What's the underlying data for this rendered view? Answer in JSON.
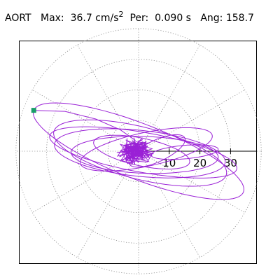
{
  "header": {
    "vessel": "AORT",
    "max_label": "Max:",
    "max_value": "36.7 cm/s",
    "max_exp": "2",
    "per_label": "Per:",
    "per_value": "0.090 s",
    "ang_label": "Ang:",
    "ang_value": "158.7"
  },
  "colors": {
    "trace": "#9a20d6",
    "marker": "#1a9d6a",
    "grid": "#8a8a8a",
    "axis": "#000000",
    "frame": "#000000"
  },
  "chart_data": {
    "type": "polar-loop",
    "unit": "cm/s^2",
    "ring_radii": [
      10,
      20,
      30,
      40
    ],
    "spoke_step_deg": 30,
    "axis_tick_labels": [
      "10",
      "20",
      "30"
    ],
    "max_magnitude": 36.7,
    "angle_deg": 158.7,
    "loops": [
      {
        "a": 36.7,
        "b": 9.0,
        "rot": 158.7,
        "cx": 0,
        "cy": 0
      },
      {
        "a": 29,
        "b": 8.5,
        "rot": 166,
        "cx": 0.5,
        "cy": -0.6
      },
      {
        "a": 31,
        "b": 6.5,
        "rot": 170,
        "cx": 1.5,
        "cy": -0.4
      },
      {
        "a": 28,
        "b": 7.5,
        "rot": 174,
        "cx": 0.4,
        "cy": -0.7
      },
      {
        "a": 24,
        "b": 6.0,
        "rot": 178,
        "cx": 2,
        "cy": -1.2
      },
      {
        "a": 22,
        "b": 5.5,
        "rot": 12,
        "cx": 2.5,
        "cy": 0.6
      },
      {
        "a": 16,
        "b": 4.5,
        "rot": 168,
        "cx": 1,
        "cy": -0.3
      },
      {
        "a": 10,
        "b": 3.5,
        "rot": 25,
        "cx": 6,
        "cy": 0.1
      },
      {
        "a": 11,
        "b": 2.2,
        "rot": 5,
        "cx": 15,
        "cy": -0.3
      }
    ],
    "tail": [
      [
        -34.2,
        13.3
      ],
      [
        -24,
        13.0
      ],
      [
        -14,
        10.5
      ],
      [
        -6,
        7.0
      ],
      [
        -1,
        3.5
      ]
    ]
  }
}
